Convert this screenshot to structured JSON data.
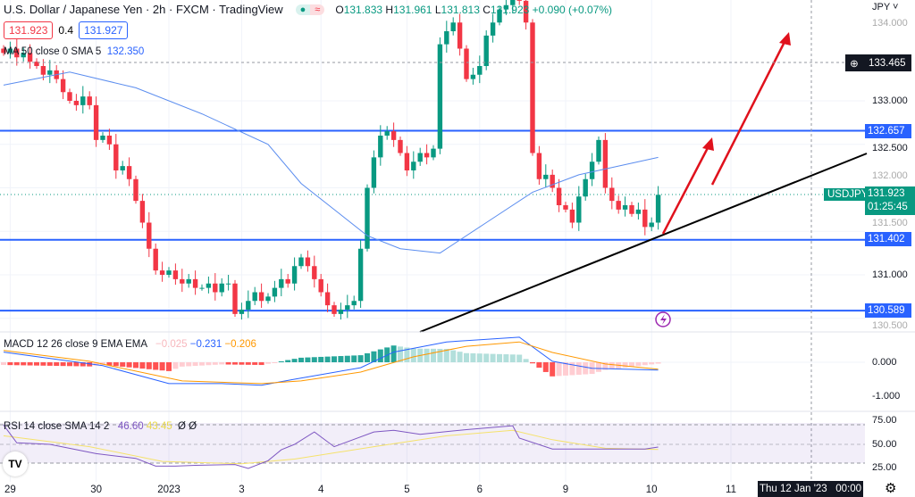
{
  "header": {
    "title": "U.S. Dollar / Japanese Yen · 2h · FXCM · TradingView",
    "o_label": "O",
    "o": "131.833",
    "h_label": "H",
    "h": "131.961",
    "l_label": "L",
    "l": "131.813",
    "c_label": "C",
    "c": "131.923",
    "change": "+0.090 (+0.07%)",
    "sell": "131.923",
    "spread": "0.4",
    "buy": "131.927",
    "ma_label": "MA 50 close 0 SMA 5",
    "ma_value": "132.350"
  },
  "colors": {
    "up": "#089981",
    "down": "#f23645",
    "level": "#2962ff",
    "ma": "#5b8def",
    "macd": "#2962ff",
    "signal": "#ff9800",
    "rsi": "#7e57c2",
    "rsi_ma": "#f5e26b"
  },
  "axis": {
    "currency": "JPY",
    "price_ticks": [
      "134.000",
      "133.000",
      "132.500",
      "132.000",
      "131.500",
      "131.000",
      "130.500"
    ],
    "crosshair_price": "133.465",
    "symbol": "USDJPY",
    "last_price": "131.923",
    "countdown": "01:25:45",
    "macd_ticks": [
      "0.000",
      "-1.000"
    ],
    "rsi_ticks": [
      "75.00",
      "50.00",
      "25.00"
    ],
    "crosshair_date": "Thu 12 Jan '23   00:00"
  },
  "levels": [
    "132.657",
    "131.402",
    "130.589"
  ],
  "macd": {
    "label": "MACD 12 26 close 9 EMA EMA",
    "hist": "−0.025",
    "macd": "−0.231",
    "signal": "−0.206"
  },
  "rsi": {
    "label": "RSI 14 close SMA 14 2",
    "rsi": "46.60",
    "ma": "43.45",
    "n1": "Ø",
    "n2": "Ø"
  },
  "chart_data": {
    "type": "candlestick",
    "title": "U.S. Dollar / Japanese Yen · 2h · FXCM",
    "ylim": [
      130.4,
      134.2
    ],
    "x_ticks": [
      {
        "label": "29",
        "i": 1
      },
      {
        "label": "30",
        "i": 14
      },
      {
        "label": "2023",
        "i": 25
      },
      {
        "label": "3",
        "i": 36
      },
      {
        "label": "4",
        "i": 48
      },
      {
        "label": "5",
        "i": 61
      },
      {
        "label": "6",
        "i": 72
      },
      {
        "label": "9",
        "i": 85
      },
      {
        "label": "10",
        "i": 98
      },
      {
        "label": "11",
        "i": 110
      }
    ],
    "closes": [
      133.55,
      133.6,
      133.5,
      133.55,
      133.45,
      133.4,
      133.3,
      133.35,
      133.25,
      133.1,
      133.0,
      132.95,
      133.05,
      132.95,
      132.55,
      132.6,
      132.5,
      132.2,
      132.25,
      132.1,
      131.85,
      131.6,
      131.3,
      131.05,
      131.0,
      131.05,
      130.95,
      130.9,
      130.95,
      130.85,
      130.85,
      130.9,
      130.8,
      130.9,
      130.9,
      130.55,
      130.6,
      130.7,
      130.8,
      130.7,
      130.75,
      130.85,
      130.95,
      130.9,
      131.1,
      131.2,
      131.1,
      130.95,
      130.8,
      130.65,
      130.55,
      130.6,
      130.65,
      130.7,
      131.3,
      132.0,
      132.35,
      132.6,
      132.65,
      132.55,
      132.4,
      132.2,
      132.3,
      132.4,
      132.35,
      132.45,
      133.65,
      133.8,
      133.9,
      133.6,
      133.25,
      133.3,
      133.4,
      133.75,
      133.9,
      134.05,
      134.1,
      134.2,
      134.15,
      133.9,
      132.4,
      132.1,
      132.15,
      132.0,
      131.8,
      131.75,
      131.6,
      131.9,
      132.1,
      132.3,
      132.55,
      132.0,
      131.85,
      131.75,
      131.8,
      131.7,
      131.75,
      131.55,
      131.6,
      131.92
    ],
    "ma50": [
      [
        0,
        133.18
      ],
      [
        10,
        133.33
      ],
      [
        20,
        133.15
      ],
      [
        30,
        132.85
      ],
      [
        40,
        132.5
      ],
      [
        45,
        132.05
      ],
      [
        55,
        131.45
      ],
      [
        60,
        131.3
      ],
      [
        66,
        131.25
      ],
      [
        73,
        131.6
      ],
      [
        80,
        131.95
      ],
      [
        87,
        132.15
      ],
      [
        99,
        132.35
      ]
    ],
    "macd_line": [
      [
        0,
        0.3
      ],
      [
        15,
        -0.1
      ],
      [
        25,
        -0.63
      ],
      [
        33,
        -0.63
      ],
      [
        39,
        -0.68
      ],
      [
        44,
        -0.5
      ],
      [
        54,
        -0.16
      ],
      [
        59,
        0.3
      ],
      [
        67,
        0.6
      ],
      [
        78,
        0.74
      ],
      [
        83,
        0.03
      ],
      [
        89,
        -0.18
      ],
      [
        99,
        -0.231
      ]
    ],
    "signal_line": [
      [
        0,
        0.35
      ],
      [
        13,
        0.03
      ],
      [
        27,
        -0.55
      ],
      [
        39,
        -0.63
      ],
      [
        45,
        -0.55
      ],
      [
        54,
        -0.29
      ],
      [
        62,
        0.16
      ],
      [
        70,
        0.47
      ],
      [
        78,
        0.6
      ],
      [
        83,
        0.29
      ],
      [
        91,
        -0.05
      ],
      [
        99,
        -0.206
      ]
    ],
    "rsi_line": [
      [
        0,
        75
      ],
      [
        2,
        52
      ],
      [
        7,
        50
      ],
      [
        14,
        38
      ],
      [
        20,
        32
      ],
      [
        23,
        22
      ],
      [
        26,
        22
      ],
      [
        29,
        23
      ],
      [
        35,
        24
      ],
      [
        37,
        19
      ],
      [
        40,
        29
      ],
      [
        42,
        43
      ],
      [
        44,
        50
      ],
      [
        47,
        66
      ],
      [
        50,
        47
      ],
      [
        56,
        66
      ],
      [
        59,
        68
      ],
      [
        63,
        63
      ],
      [
        70,
        69
      ],
      [
        77,
        74
      ],
      [
        78,
        58
      ],
      [
        83,
        44
      ],
      [
        89,
        44
      ],
      [
        93,
        44
      ],
      [
        97,
        44
      ],
      [
        99,
        46.6
      ]
    ],
    "rsi_ma": [
      [
        0,
        61
      ],
      [
        13,
        47
      ],
      [
        24,
        28
      ],
      [
        36,
        25
      ],
      [
        44,
        31
      ],
      [
        56,
        47
      ],
      [
        67,
        61
      ],
      [
        77,
        68
      ],
      [
        83,
        56
      ],
      [
        91,
        45
      ],
      [
        99,
        43.45
      ]
    ]
  }
}
